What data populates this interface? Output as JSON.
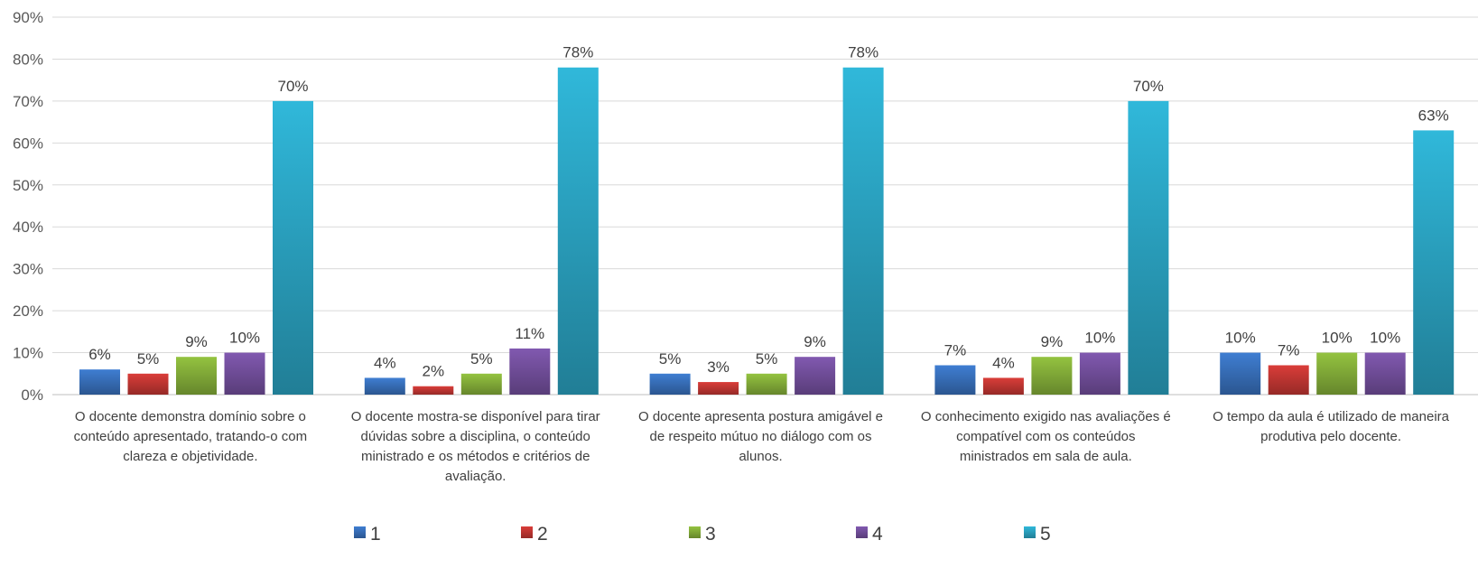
{
  "chart_data": {
    "type": "bar",
    "title": "",
    "xlabel": "",
    "ylabel": "",
    "ylim": [
      0,
      90
    ],
    "y_ticks": [
      "0%",
      "10%",
      "20%",
      "30%",
      "40%",
      "50%",
      "60%",
      "70%",
      "80%",
      "90%"
    ],
    "y_tick_values": [
      0,
      10,
      20,
      30,
      40,
      50,
      60,
      70,
      80,
      90
    ],
    "grid": true,
    "legend_position": "bottom",
    "categories": [
      "O docente demonstra domínio sobre o conteúdo apresentado, tratando-o com clareza e objetividade.",
      "O docente mostra-se disponível para tirar dúvidas sobre a disciplina, o conteúdo ministrado e os métodos e critérios de avaliação.",
      "O docente apresenta postura amigável e de respeito mútuo no diálogo com os alunos.",
      "O conhecimento exigido nas avaliações é compatível com os conteúdos ministrados em sala de aula.",
      "O tempo da aula é utilizado de maneira produtiva pelo docente."
    ],
    "category_lines": [
      [
        "O docente demonstra domínio sobre o",
        "conteúdo apresentado, tratando-o com",
        "clareza e objetividade."
      ],
      [
        "O docente mostra-se disponível para tirar",
        "dúvidas sobre a disciplina, o conteúdo",
        "ministrado e os métodos e critérios de",
        "avaliação."
      ],
      [
        "O docente apresenta postura amigável e",
        "de respeito mútuo no diálogo com os",
        "alunos."
      ],
      [
        "O conhecimento exigido nas avaliações é",
        "compatível com os conteúdos",
        "ministrados em sala de aula."
      ],
      [
        "O tempo da aula é utilizado de maneira",
        "produtiva pelo docente."
      ]
    ],
    "series": [
      {
        "name": "1",
        "color": "#3C78C8",
        "values": [
          6,
          4,
          5,
          7,
          10
        ],
        "labels": [
          "6%",
          "4%",
          "5%",
          "7%",
          "10%"
        ]
      },
      {
        "name": "2",
        "color": "#D03A36",
        "values": [
          5,
          2,
          3,
          4,
          7
        ],
        "labels": [
          "5%",
          "2%",
          "3%",
          "4%",
          "7%"
        ]
      },
      {
        "name": "3",
        "color": "#8DBA3D",
        "values": [
          9,
          5,
          5,
          9,
          10
        ],
        "labels": [
          "9%",
          "5%",
          "5%",
          "9%",
          "10%"
        ]
      },
      {
        "name": "4",
        "color": "#7B55A8",
        "values": [
          10,
          11,
          9,
          10,
          10
        ],
        "labels": [
          "10%",
          "11%",
          "9%",
          "10%",
          "10%"
        ]
      },
      {
        "name": "5",
        "color": "#2EAFD0",
        "values": [
          70,
          78,
          78,
          70,
          63
        ],
        "labels": [
          "70%",
          "78%",
          "78%",
          "70%",
          "63%"
        ]
      }
    ]
  }
}
